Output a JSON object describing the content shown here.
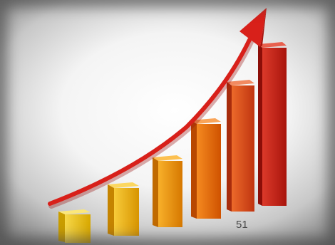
{
  "slide": {
    "page_number": "51"
  },
  "graphic": {
    "name": "growth-chart-illustration",
    "bar_count": 6,
    "bar_colors": [
      "#f2c200",
      "#f5b000",
      "#f39a00",
      "#ee6a00",
      "#e24a10",
      "#c8201a"
    ],
    "arrow_color": "#d8201a"
  }
}
